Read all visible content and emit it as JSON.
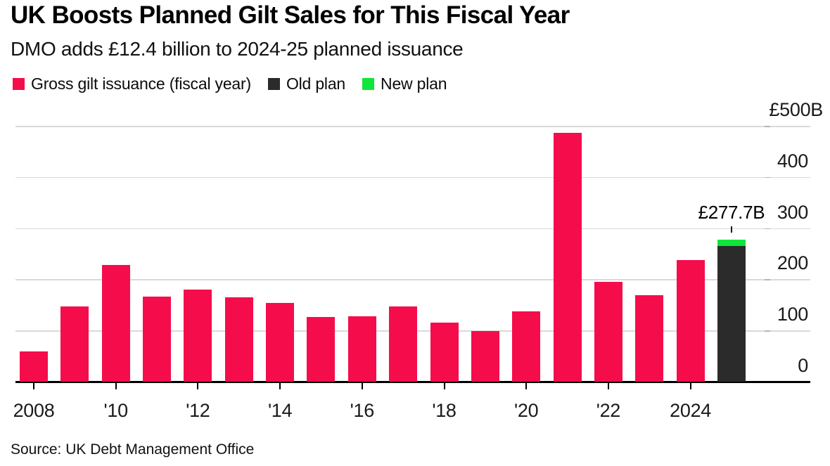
{
  "header": {
    "title": "UK Boosts Planned Gilt Sales for This Fiscal Year",
    "subtitle": "DMO adds £12.4 billion to 2024-25 planned issuance"
  },
  "legend": [
    {
      "label": "Gross gilt issuance (fiscal year)",
      "color": "#f50d4b",
      "swatch_icon": "red-square-swatch-icon"
    },
    {
      "label": "Old plan",
      "color": "#2b2b2b",
      "swatch_icon": "dark-square-swatch-icon"
    },
    {
      "label": "New plan",
      "color": "#0ee63a",
      "swatch_icon": "green-square-swatch-icon"
    }
  ],
  "source": "Source: UK Debt Management Office",
  "chart_data": {
    "type": "bar",
    "title": "UK Boosts Planned Gilt Sales for This Fiscal Year",
    "subtitle": "DMO adds £12.4 billion to 2024-25 planned issuance",
    "unit": "£B",
    "grid": "horizontal",
    "legend_position": "top",
    "ylim": [
      0,
      500
    ],
    "ytick_values": [
      0,
      100,
      200,
      300,
      400,
      500
    ],
    "ytick_labels": [
      "0",
      "100",
      "200",
      "300",
      "400",
      "£500B"
    ],
    "categories": [
      "2008",
      "2009",
      "2010",
      "2011",
      "2012",
      "2013",
      "2014",
      "2015",
      "2016",
      "2017",
      "2018",
      "2019",
      "2020",
      "2021",
      "2022",
      "2023",
      "2024",
      "2025"
    ],
    "xtick_labels": [
      "2008",
      "'10",
      "'12",
      "'14",
      "'16",
      "'18",
      "'20",
      "'22",
      "2024"
    ],
    "xtick_every": 2,
    "series": [
      {
        "name": "Gross gilt issuance (fiscal year)",
        "color": "#f50d4b",
        "values": [
          58.5,
          146.4,
          227.6,
          165.6,
          179.4,
          164.2,
          153.4,
          126.4,
          127.7,
          146.5,
          115.1,
          98.8,
          137.0,
          485.8,
          194.8,
          169.5,
          237.8,
          null
        ]
      },
      {
        "name": "Old plan",
        "color": "#2b2b2b",
        "values": [
          null,
          null,
          null,
          null,
          null,
          null,
          null,
          null,
          null,
          null,
          null,
          null,
          null,
          null,
          null,
          null,
          null,
          265.3
        ]
      },
      {
        "name": "New plan",
        "color": "#0ee63a",
        "values": [
          null,
          null,
          null,
          null,
          null,
          null,
          null,
          null,
          null,
          null,
          null,
          null,
          null,
          null,
          null,
          null,
          null,
          12.4
        ]
      }
    ],
    "stacked": true,
    "annotation": {
      "text": "£277.7B",
      "category": "2025",
      "category_index": 17,
      "total_value": 277.7
    }
  }
}
